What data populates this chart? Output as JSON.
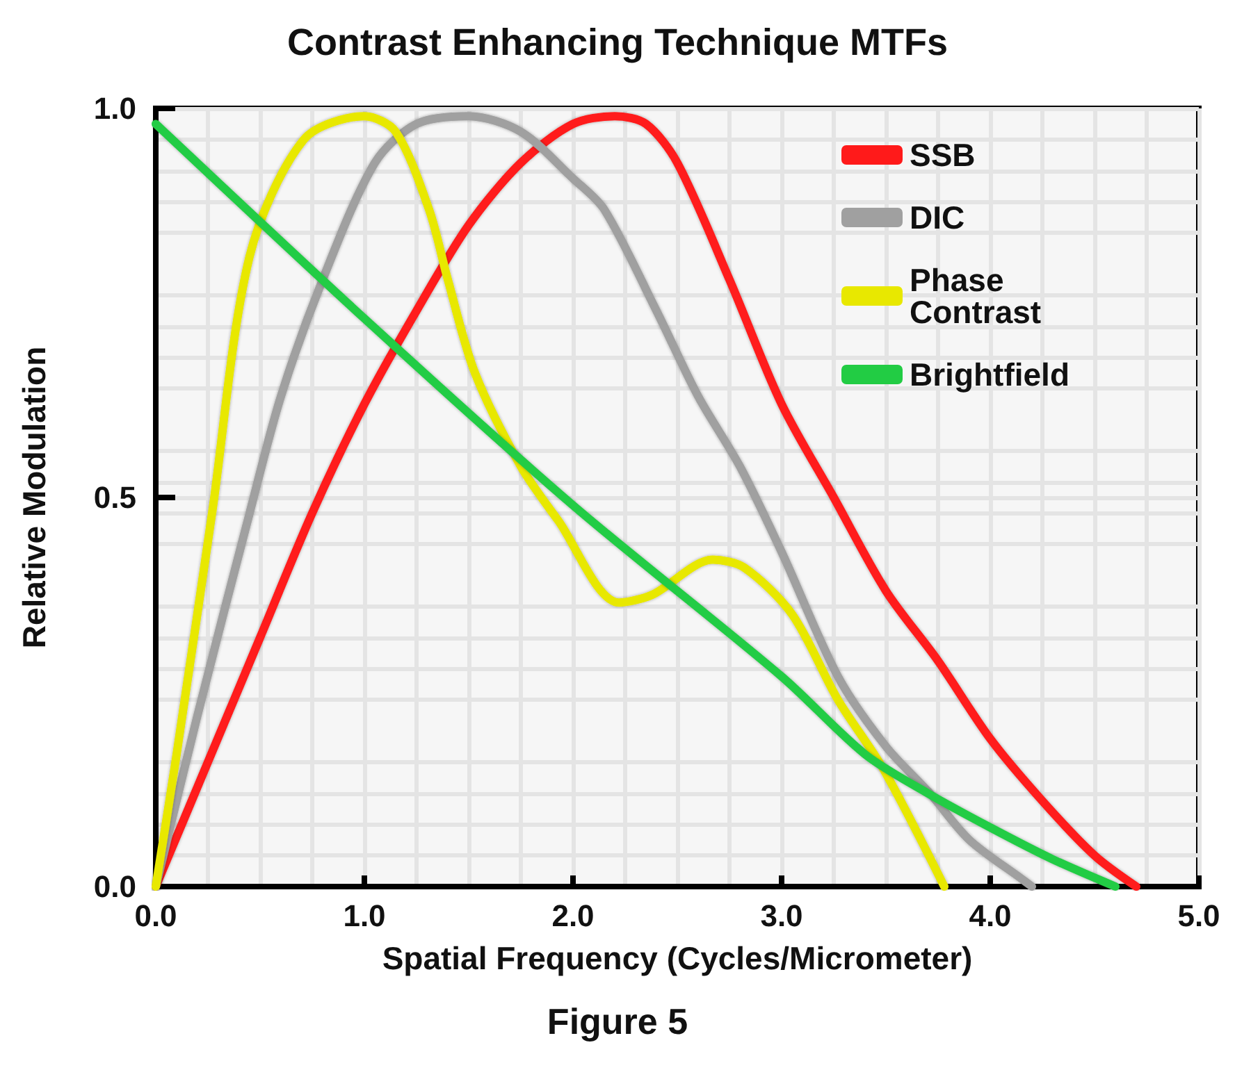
{
  "chart_data": {
    "type": "line",
    "title": "Contrast Enhancing Technique MTFs",
    "xlabel": "Spatial Frequency (Cycles/Micrometer)",
    "ylabel": "Relative Modulation",
    "annotations": [
      "Figure 5"
    ],
    "xlim": [
      0,
      5
    ],
    "xticks": [
      {
        "value": 0,
        "label": "0.0"
      },
      {
        "value": 1,
        "label": "1.0"
      },
      {
        "value": 2,
        "label": "2.0"
      },
      {
        "value": 3,
        "label": "3.0"
      },
      {
        "value": 4,
        "label": "4.0"
      },
      {
        "value": 5,
        "label": "5.0"
      }
    ],
    "ylim": [
      0,
      1
    ],
    "yticks": [
      {
        "value": 0,
        "label": "0.0"
      },
      {
        "value": 0.5,
        "label": "0.5"
      },
      {
        "value": 1,
        "label": "1.0"
      }
    ],
    "grid": true,
    "legend": "top right",
    "marker": "none",
    "line_style": "solid",
    "series": [
      {
        "name": "SSB",
        "color": "#ff1a1a",
        "x": [
          0,
          0.25,
          0.5,
          0.75,
          1,
          1.25,
          1.5,
          1.75,
          2,
          2.2,
          2.35,
          2.5,
          2.75,
          3,
          3.25,
          3.5,
          3.75,
          4,
          4.25,
          4.5,
          4.7
        ],
        "values": [
          0,
          0.16,
          0.32,
          0.48,
          0.62,
          0.74,
          0.85,
          0.93,
          0.98,
          0.99,
          0.98,
          0.93,
          0.78,
          0.62,
          0.5,
          0.38,
          0.29,
          0.19,
          0.11,
          0.04,
          0
        ]
      },
      {
        "name": "DIC",
        "color": "#a0a0a0",
        "x": [
          0,
          0.2,
          0.45,
          0.6,
          0.8,
          1.05,
          1.25,
          1.5,
          1.75,
          2,
          2.15,
          2.4,
          2.6,
          2.8,
          3,
          3.27,
          3.5,
          3.71,
          3.9,
          4.15,
          4.2
        ],
        "values": [
          0,
          0.22,
          0.48,
          0.63,
          0.78,
          0.93,
          0.98,
          0.99,
          0.97,
          0.91,
          0.87,
          0.74,
          0.63,
          0.54,
          0.43,
          0.27,
          0.18,
          0.12,
          0.06,
          0.01,
          0
        ]
      },
      {
        "name": "Phase Contrast",
        "color": "#e8e800",
        "x": [
          0,
          0.1,
          0.27,
          0.45,
          0.71,
          1,
          1.15,
          1.31,
          1.4,
          1.53,
          1.75,
          1.93,
          2.22,
          2.38,
          2.67,
          2.82,
          3.05,
          3.27,
          3.49,
          3.78
        ],
        "values": [
          0,
          0.17,
          0.48,
          0.81,
          0.96,
          0.99,
          0.97,
          0.87,
          0.78,
          0.66,
          0.54,
          0.47,
          0.365,
          0.375,
          0.42,
          0.41,
          0.35,
          0.24,
          0.15,
          0
        ]
      },
      {
        "name": "Brightfield",
        "color": "#22cc44",
        "x": [
          0,
          1,
          2,
          3,
          3.4,
          3.7,
          4,
          4.3,
          4.6
        ],
        "values": [
          0.98,
          0.73,
          0.49,
          0.27,
          0.17,
          0.12,
          0.076,
          0.035,
          0
        ]
      }
    ]
  }
}
